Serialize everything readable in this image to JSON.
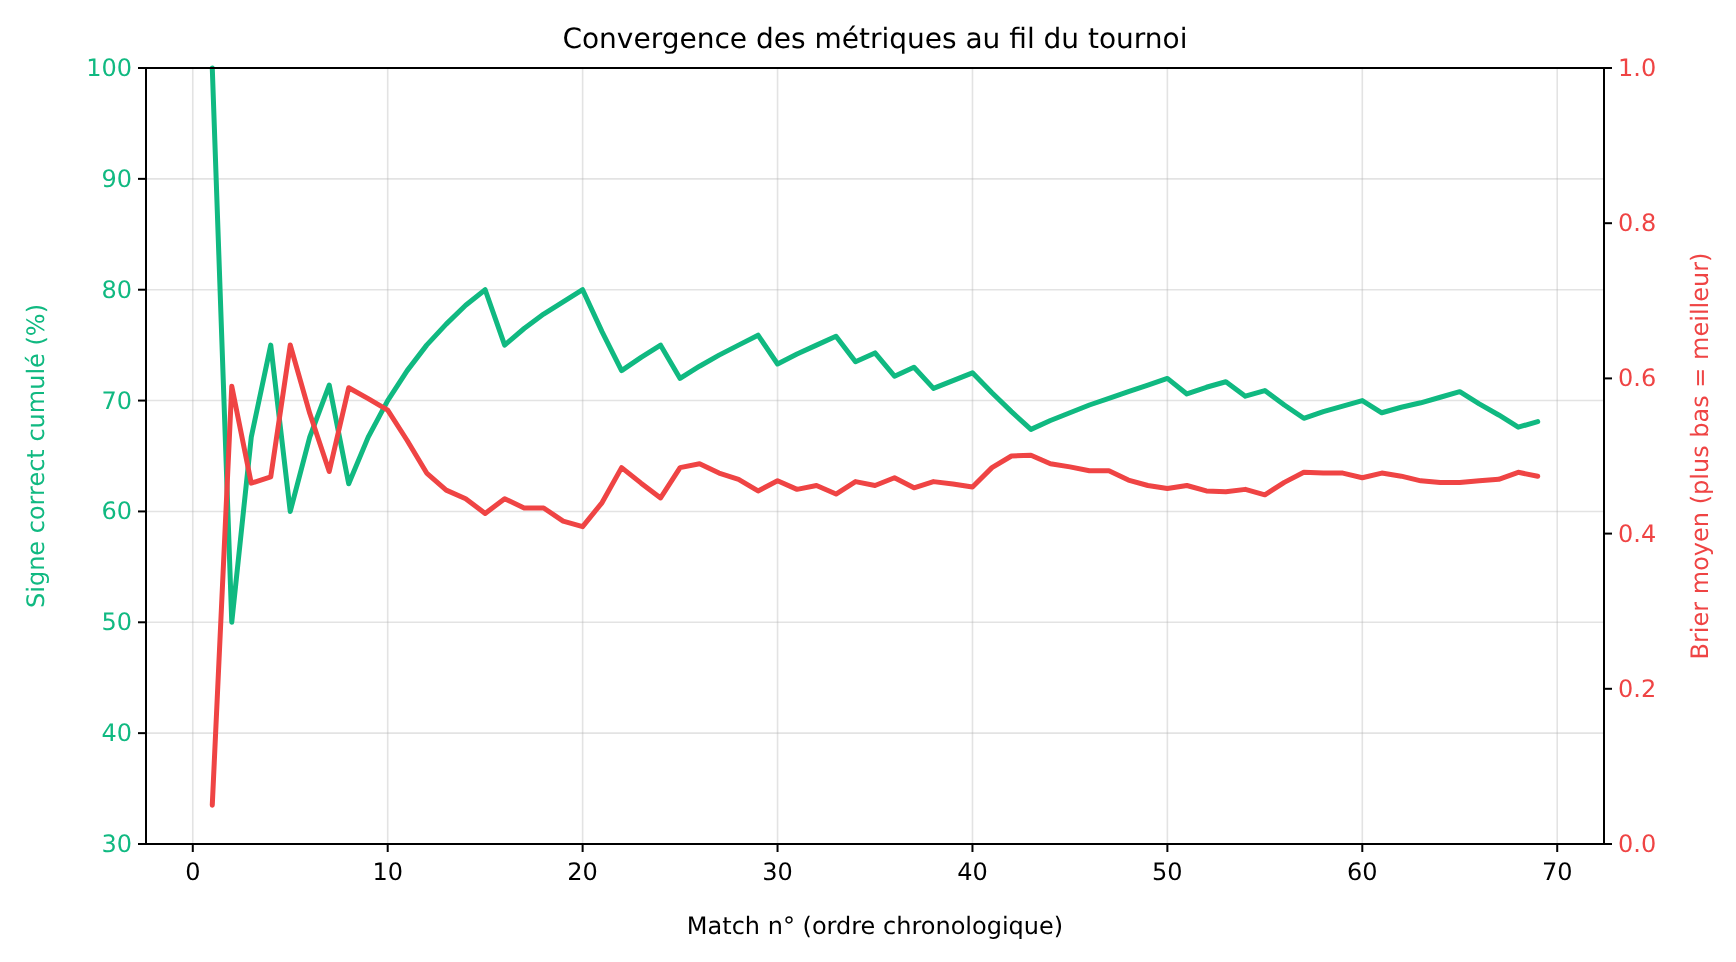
{
  "chart_data": {
    "type": "line",
    "title": "Convergence des métriques au fil du tournoi",
    "xlabel": "Match n° (ordre chronologique)",
    "ylabel": "Signe correct cumulé (%)",
    "y2label": "Brier moyen (plus bas = meilleur)",
    "x": [
      1,
      2,
      3,
      4,
      5,
      6,
      7,
      8,
      9,
      10,
      11,
      12,
      13,
      14,
      15,
      16,
      17,
      18,
      19,
      20,
      21,
      22,
      23,
      24,
      25,
      26,
      27,
      28,
      29,
      30,
      31,
      32,
      33,
      34,
      35,
      36,
      37,
      38,
      39,
      40,
      41,
      42,
      43,
      44,
      45,
      46,
      47,
      48,
      49,
      50,
      51,
      52,
      53,
      54,
      55,
      56,
      57,
      58,
      59,
      60,
      61,
      62,
      63,
      64,
      65,
      66,
      67,
      68,
      69
    ],
    "series": [
      {
        "color": "#10b981",
        "values": [
          100,
          50,
          66.7,
          75,
          60,
          66.7,
          71.4,
          62.5,
          66.7,
          70,
          72.7,
          75,
          76.9,
          78.6,
          80,
          75,
          76.5,
          77.8,
          78.9,
          80,
          76.2,
          72.7,
          73.9,
          75,
          72,
          73.1,
          74.1,
          75,
          75.9,
          73.3,
          74.2,
          75,
          75.8,
          73.5,
          74.3,
          72.2,
          73,
          71.1,
          71.8,
          72.5,
          70.7,
          69,
          67.4,
          68.2,
          68.9,
          69.6,
          70.2,
          70.8,
          71.4,
          72,
          70.6,
          71.2,
          71.7,
          70.4,
          70.9,
          69.6,
          68.4,
          69,
          69.5,
          70,
          68.9,
          69.4,
          69.8,
          70.3,
          70.8,
          69.7,
          68.7,
          67.6,
          68.1
        ]
      },
      {
        "color": "#ef4444",
        "axis": "y2",
        "values": [
          0.05,
          0.59,
          0.465,
          0.473,
          0.643,
          0.555,
          0.48,
          0.588,
          0.574,
          0.559,
          0.52,
          0.478,
          0.456,
          0.445,
          0.426,
          0.445,
          0.433,
          0.433,
          0.416,
          0.409,
          0.44,
          0.485,
          0.465,
          0.446,
          0.485,
          0.49,
          0.478,
          0.47,
          0.455,
          0.468,
          0.457,
          0.462,
          0.451,
          0.467,
          0.462,
          0.472,
          0.459,
          0.467,
          0.464,
          0.46,
          0.485,
          0.5,
          0.501,
          0.49,
          0.486,
          0.481,
          0.481,
          0.469,
          0.462,
          0.458,
          0.462,
          0.455,
          0.454,
          0.457,
          0.45,
          0.466,
          0.479,
          0.478,
          0.478,
          0.472,
          0.478,
          0.474,
          0.468,
          0.466,
          0.466,
          0.468,
          0.47,
          0.479,
          0.474
        ]
      }
    ],
    "xlim": [
      -2.4,
      72.4
    ],
    "xticks": [
      0,
      10,
      20,
      30,
      40,
      50,
      60,
      70
    ],
    "ylim": [
      30,
      100
    ],
    "yticks": [
      30,
      40,
      50,
      60,
      70,
      80,
      90,
      100
    ],
    "y2lim": [
      0,
      1
    ],
    "y2ticks": [
      {
        "value": 0,
        "label": "0.0"
      },
      {
        "value": 0.2,
        "label": "0.2"
      },
      {
        "value": 0.4,
        "label": "0.4"
      },
      {
        "value": 0.6,
        "label": "0.6"
      },
      {
        "value": 0.8,
        "label": "0.8"
      },
      {
        "value": 1,
        "label": "1.0"
      }
    ],
    "grid": true,
    "line_style": "solid",
    "marker": "none"
  }
}
